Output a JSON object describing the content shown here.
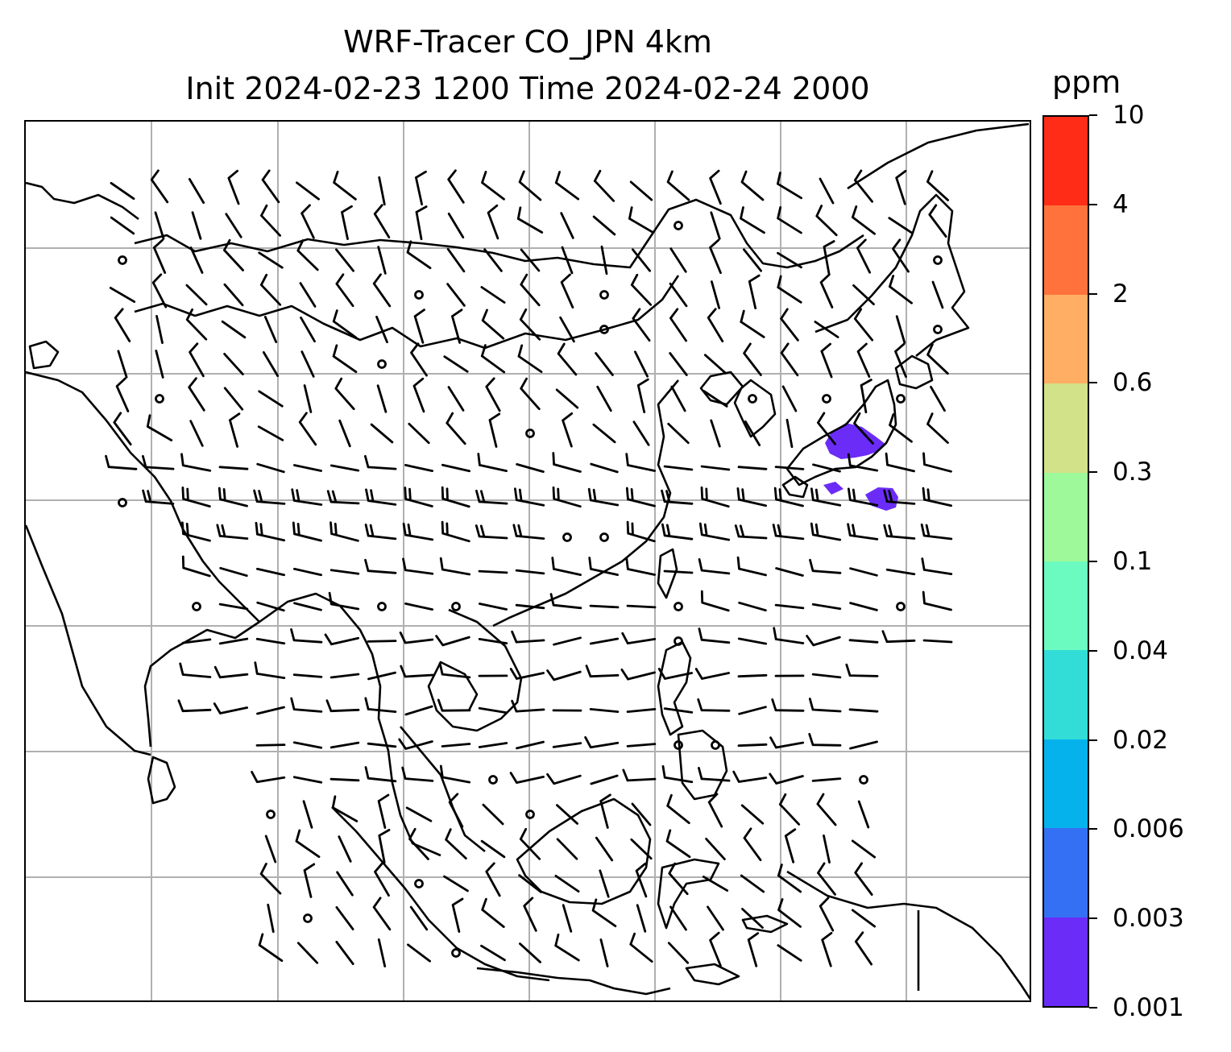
{
  "title": {
    "line1": "WRF-Tracer CO_JPN 4km",
    "line2": "Init 2024-02-23 1200 Time 2024-02-24 2000"
  },
  "colorbar": {
    "unit": "ppm",
    "levels": [
      "0.001",
      "0.003",
      "0.006",
      "0.02",
      "0.04",
      "0.1",
      "0.3",
      "0.6",
      "2",
      "4",
      "10"
    ],
    "colors": [
      "#6a2cf6",
      "#3470f4",
      "#05b2ec",
      "#31ddd6",
      "#6bfbc0",
      "#9ef99a",
      "#d2e289",
      "#ffae63",
      "#ff723b",
      "#ff2c17"
    ]
  },
  "map": {
    "gridline_color": "#b0b0b0",
    "coastline_color": "#000000",
    "tracer_color": "#6a2cf6"
  }
}
